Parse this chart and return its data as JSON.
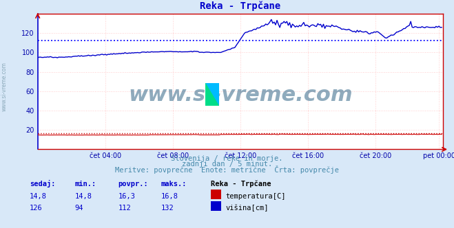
{
  "title": "Reka - Trpčane",
  "title_color": "#0000cc",
  "bg_color": "#d8e8f8",
  "plot_bg_color": "#ffffff",
  "xlabel_ticks": [
    "čet 04:00",
    "čet 08:00",
    "čet 12:00",
    "čet 16:00",
    "čet 20:00",
    "pet 00:00"
  ],
  "tick_x_positions": [
    48,
    96,
    144,
    192,
    240,
    285
  ],
  "ylabel_ticks": [
    20,
    40,
    60,
    80,
    100,
    120
  ],
  "ylim": [
    0,
    140
  ],
  "xlim": [
    0,
    288
  ],
  "grid_color": "#ffcccc",
  "avg_line_color": "#0000ff",
  "avg_value_visina": 112,
  "avg_value_temp": 16.3,
  "temp_line_color": "#cc0000",
  "visina_line_color": "#0000cc",
  "watermark_text": "www.si-vreme.com",
  "watermark_color": "#336688",
  "sub_text1": "Slovenija / reke in morje.",
  "sub_text2": "zadnji dan / 5 minut.",
  "sub_text3": "Meritve: povprečne  Enote: metrične  Črta: povprečje",
  "sub_color": "#4488aa",
  "table_headers": [
    "sedaj:",
    "min.:",
    "povpr.:",
    "maks.:"
  ],
  "table_col_color": "#0000cc",
  "reka_label": "Reka - Trpčane",
  "temp_row": [
    "14,8",
    "14,8",
    "16,3",
    "16,8"
  ],
  "visina_row": [
    "126",
    "94",
    "112",
    "132"
  ],
  "temp_label": "temperatura[C]",
  "visina_label": "višina[cm]",
  "n_points": 288,
  "tick_label_color": "#0000aa",
  "left_spine_color": "#0000cc",
  "bottom_spine_color": "#cc0000",
  "right_spine_color": "#cc0000",
  "top_spine_color": "#cc0000",
  "left_label_color": "#7799aa",
  "arrow_color": "#cc0000"
}
